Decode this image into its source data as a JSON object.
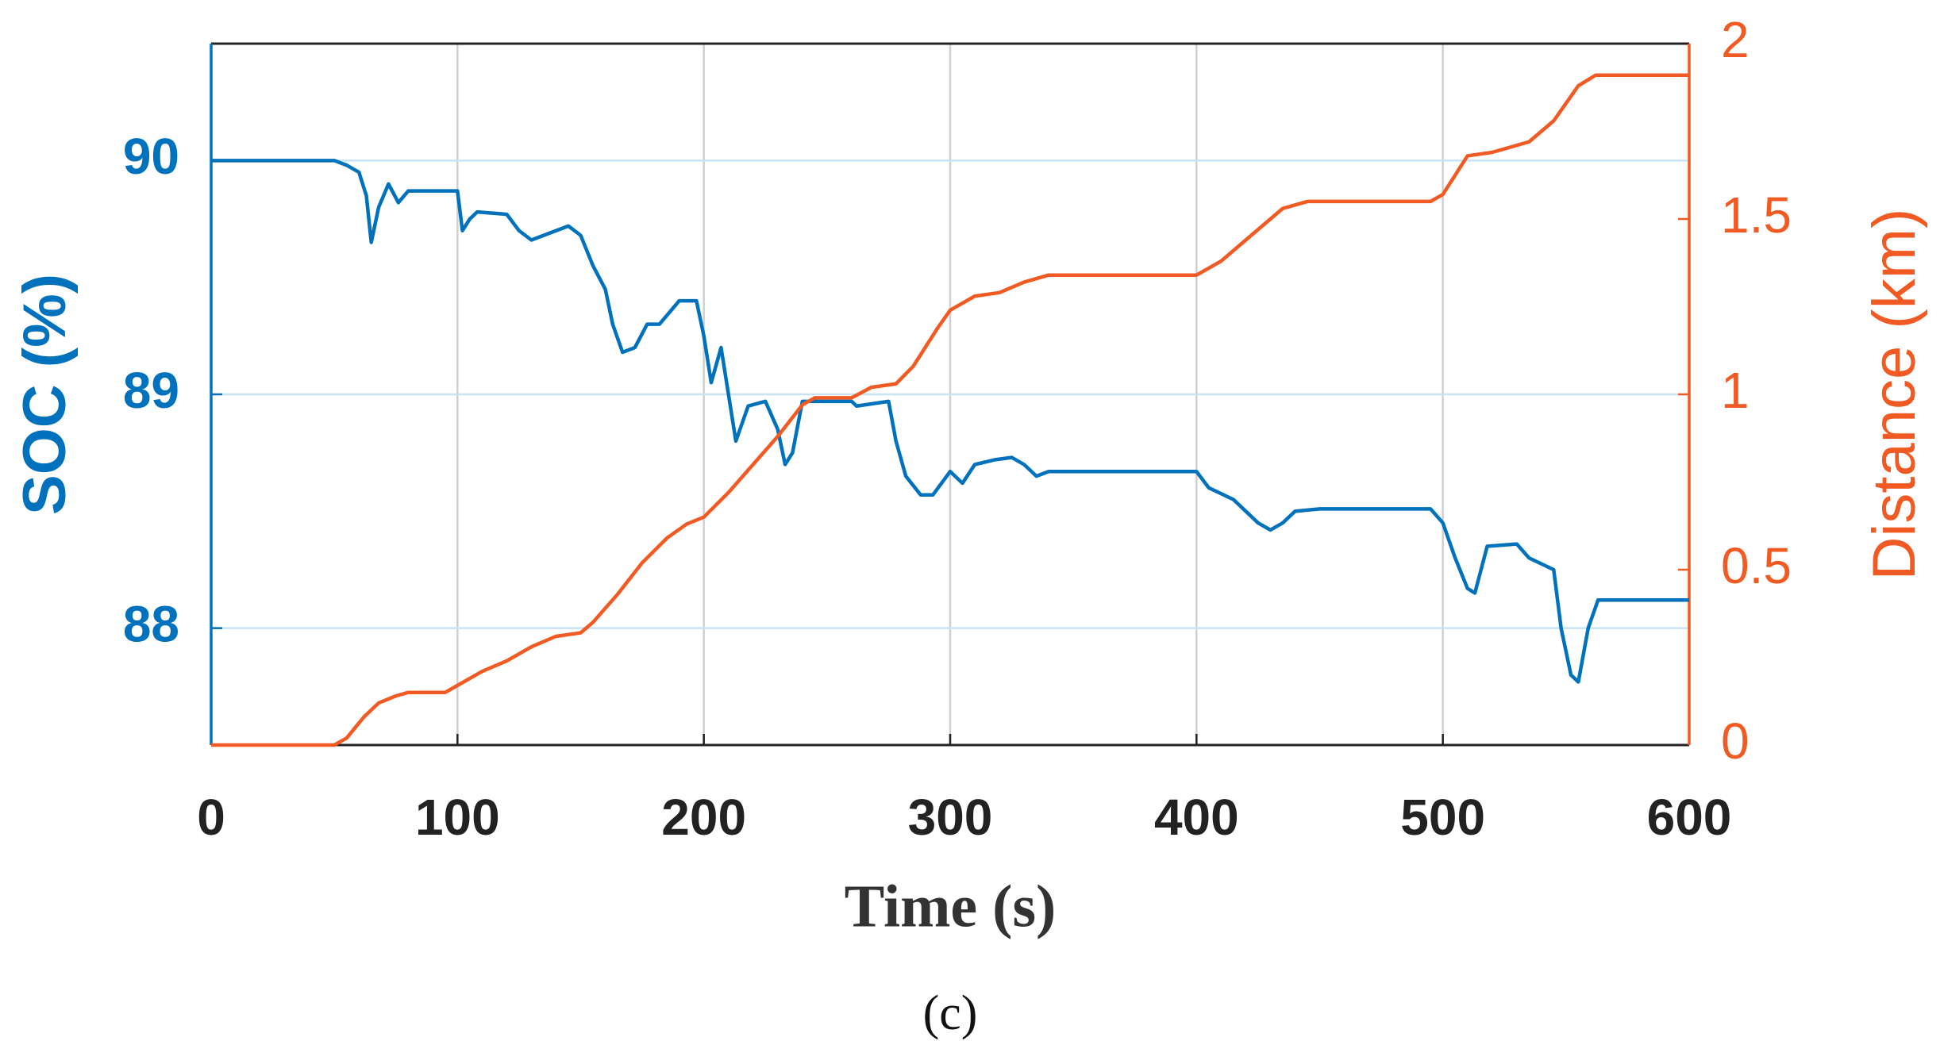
{
  "chart_data": {
    "type": "line",
    "x_label": "Time (s)",
    "y_label": "SOC (%)",
    "y2_label": "Distance (km)",
    "caption": "(c)",
    "xlim": [
      0,
      600
    ],
    "xticks": [
      0,
      100,
      200,
      300,
      400,
      500,
      600
    ],
    "ylim": [
      87.5,
      90.5
    ],
    "yticks": [
      88,
      89,
      90
    ],
    "y2lim": [
      0,
      2
    ],
    "y2ticks": [
      0,
      0.5,
      1,
      1.5,
      2
    ],
    "grid": true,
    "series": [
      {
        "name": "SOC",
        "color": "#0072bd",
        "x": [
          0,
          50,
          55,
          60,
          63,
          65,
          68,
          72,
          76,
          80,
          90,
          100,
          102,
          105,
          108,
          120,
          125,
          130,
          140,
          145,
          150,
          155,
          160,
          163,
          167,
          172,
          177,
          182,
          186,
          190,
          197,
          200,
          203,
          207,
          210,
          213,
          218,
          225,
          230,
          233,
          236,
          240,
          260,
          262,
          275,
          278,
          282,
          288,
          293,
          300,
          305,
          310,
          318,
          325,
          330,
          335,
          340,
          400,
          405,
          415,
          425,
          430,
          435,
          440,
          450,
          495,
          500,
          505,
          510,
          513,
          518,
          530,
          535,
          545,
          548,
          552,
          555,
          559,
          563,
          600
        ],
        "values": [
          90,
          90,
          89.98,
          89.95,
          89.85,
          89.65,
          89.8,
          89.9,
          89.82,
          89.87,
          89.87,
          89.87,
          89.7,
          89.75,
          89.78,
          89.77,
          89.7,
          89.66,
          89.7,
          89.72,
          89.68,
          89.55,
          89.45,
          89.3,
          89.18,
          89.2,
          89.3,
          89.3,
          89.35,
          89.4,
          89.4,
          89.25,
          89.05,
          89.2,
          89.0,
          88.8,
          88.95,
          88.97,
          88.85,
          88.7,
          88.75,
          88.97,
          88.97,
          88.95,
          88.97,
          88.8,
          88.65,
          88.57,
          88.57,
          88.67,
          88.62,
          88.7,
          88.72,
          88.73,
          88.7,
          88.65,
          88.67,
          88.67,
          88.6,
          88.55,
          88.45,
          88.42,
          88.45,
          88.5,
          88.51,
          88.51,
          88.45,
          88.3,
          88.17,
          88.15,
          88.35,
          88.36,
          88.3,
          88.25,
          88.0,
          87.8,
          87.77,
          88.0,
          88.12,
          88.12
        ]
      },
      {
        "name": "Distance",
        "color": "#f15a22",
        "axis": "y2",
        "x": [
          0,
          50,
          55,
          62,
          68,
          75,
          80,
          95,
          100,
          110,
          120,
          130,
          140,
          150,
          155,
          165,
          175,
          185,
          193,
          200,
          210,
          220,
          230,
          240,
          245,
          260,
          268,
          278,
          285,
          295,
          300,
          310,
          320,
          330,
          340,
          400,
          410,
          420,
          435,
          445,
          495,
          500,
          510,
          520,
          535,
          545,
          555,
          562,
          600
        ],
        "values": [
          0,
          0,
          0.02,
          0.08,
          0.12,
          0.14,
          0.15,
          0.15,
          0.17,
          0.21,
          0.24,
          0.28,
          0.31,
          0.32,
          0.35,
          0.43,
          0.52,
          0.59,
          0.63,
          0.65,
          0.72,
          0.8,
          0.88,
          0.97,
          0.99,
          0.99,
          1.02,
          1.03,
          1.08,
          1.19,
          1.24,
          1.28,
          1.29,
          1.32,
          1.34,
          1.34,
          1.38,
          1.44,
          1.53,
          1.55,
          1.55,
          1.57,
          1.68,
          1.69,
          1.72,
          1.78,
          1.88,
          1.91,
          1.91
        ]
      }
    ]
  }
}
